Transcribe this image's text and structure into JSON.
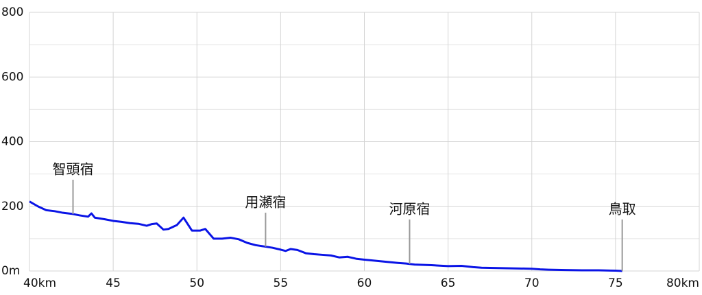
{
  "chart_data": {
    "type": "line",
    "x": [
      40,
      40.5,
      41,
      41.5,
      42,
      42.5,
      43,
      43.5,
      43.7,
      43.9,
      44.5,
      45,
      45.5,
      46,
      46.5,
      47,
      47.3,
      47.6,
      48,
      48.3,
      48.8,
      49.2,
      49.7,
      50.2,
      50.5,
      51,
      51.5,
      52,
      52.5,
      53,
      53.5,
      54,
      54.5,
      55,
      55.3,
      55.6,
      56,
      56.5,
      57,
      57.5,
      58,
      58.5,
      59,
      59.5,
      60,
      61,
      62,
      62.5,
      63,
      64,
      65,
      65.8,
      66.5,
      67,
      68,
      69,
      70,
      70.5,
      71,
      72,
      73,
      74,
      75,
      75.4
    ],
    "series": [
      {
        "color": "#0a14e6",
        "values": [
          215,
          200,
          188,
          185,
          180,
          177,
          172,
          168,
          178,
          165,
          160,
          155,
          152,
          148,
          146,
          140,
          145,
          147,
          128,
          130,
          142,
          165,
          125,
          125,
          130,
          100,
          100,
          103,
          98,
          87,
          80,
          76,
          72,
          66,
          62,
          68,
          65,
          55,
          52,
          50,
          48,
          42,
          44,
          38,
          35,
          30,
          25,
          23,
          20,
          18,
          15,
          16,
          12,
          10,
          9,
          8,
          7,
          5,
          4,
          3,
          2,
          2,
          1,
          0
        ]
      }
    ],
    "xlim": [
      40,
      80
    ],
    "ylim": [
      0,
      800
    ],
    "xticks": [
      {
        "value": 40,
        "label": "40km"
      },
      45,
      50,
      55,
      60,
      65,
      70,
      75,
      {
        "value": 80,
        "label": "80km"
      }
    ],
    "yticks": [
      {
        "value": 0,
        "label": "0m"
      },
      200,
      400,
      600,
      800
    ],
    "y_minor_ticks": [
      100,
      300,
      500,
      700
    ],
    "grid": true,
    "annotations": [
      {
        "text": "智頭宿",
        "x": 42.6,
        "y": 312
      },
      {
        "text": "用瀬宿",
        "x": 54.1,
        "y": 210
      },
      {
        "text": "河原宿",
        "x": 62.7,
        "y": 189
      },
      {
        "text": "鳥取",
        "x": 75.4,
        "y": 189
      }
    ]
  }
}
